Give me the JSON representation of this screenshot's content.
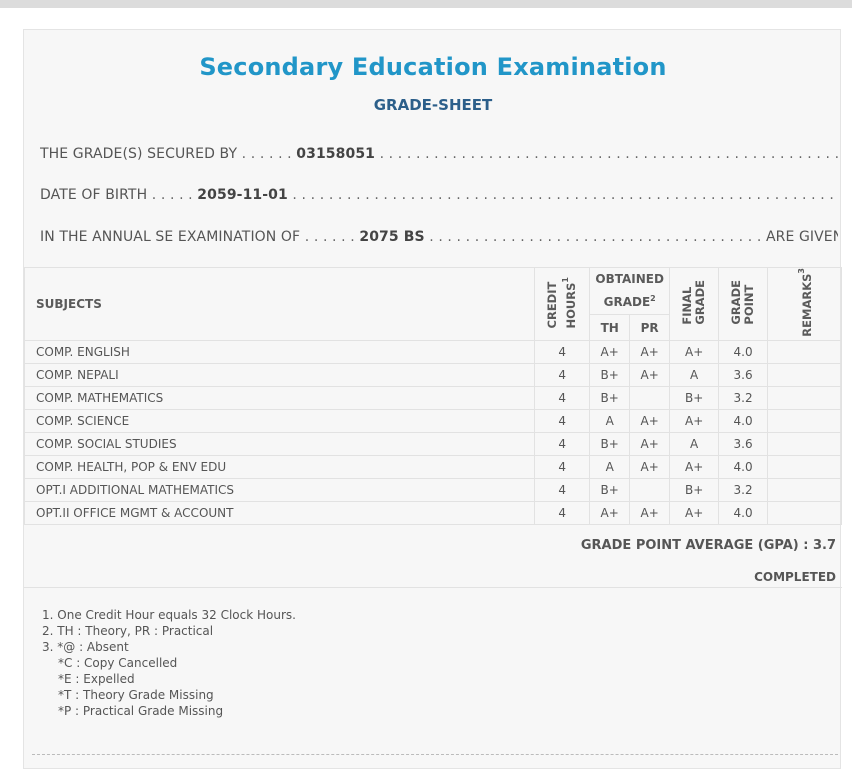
{
  "header": {
    "title": "Secondary Education Examination",
    "subtitle": "GRADE-SHEET"
  },
  "info": {
    "secured_label": "THE GRADE(S) SECURED BY",
    "secured_value": "03158051",
    "dob_label": "DATE OF BIRTH",
    "dob_value": "2059-11-01",
    "exam_label": "IN THE ANNUAL SE EXAMINATION OF",
    "exam_value": "2075 BS",
    "exam_suffix": "ARE GIVEN BELOW"
  },
  "table": {
    "headers": {
      "subjects": "SUBJECTS",
      "credit_hours_1": "CREDIT",
      "credit_hours_2": "HOURS",
      "credit_sup": "1",
      "obtained_grade_1": "OBTAINED",
      "obtained_grade_2": "GRADE",
      "obtained_sup": "2",
      "th": "TH",
      "pr": "PR",
      "final_grade_1": "FINAL",
      "final_grade_2": "GRADE",
      "grade_point_1": "GRADE",
      "grade_point_2": "POINT",
      "remarks": "REMARKS",
      "remarks_sup": "3"
    },
    "rows": [
      {
        "subject": "COMP. ENGLISH",
        "credit": "4",
        "th": "A+",
        "pr": "A+",
        "final": "A+",
        "gp": "4.0",
        "remarks": ""
      },
      {
        "subject": "COMP. NEPALI",
        "credit": "4",
        "th": "B+",
        "pr": "A+",
        "final": "A",
        "gp": "3.6",
        "remarks": ""
      },
      {
        "subject": "COMP. MATHEMATICS",
        "credit": "4",
        "th": "B+",
        "pr": "",
        "final": "B+",
        "gp": "3.2",
        "remarks": ""
      },
      {
        "subject": "COMP. SCIENCE",
        "credit": "4",
        "th": "A",
        "pr": "A+",
        "final": "A+",
        "gp": "4.0",
        "remarks": ""
      },
      {
        "subject": "COMP. SOCIAL STUDIES",
        "credit": "4",
        "th": "B+",
        "pr": "A+",
        "final": "A",
        "gp": "3.6",
        "remarks": ""
      },
      {
        "subject": "COMP. HEALTH, POP & ENV EDU",
        "credit": "4",
        "th": "A",
        "pr": "A+",
        "final": "A+",
        "gp": "4.0",
        "remarks": ""
      },
      {
        "subject": "OPT.I ADDITIONAL MATHEMATICS",
        "credit": "4",
        "th": "B+",
        "pr": "",
        "final": "B+",
        "gp": "3.2",
        "remarks": ""
      },
      {
        "subject": "OPT.II OFFICE MGMT & ACCOUNT",
        "credit": "4",
        "th": "A+",
        "pr": "A+",
        "final": "A+",
        "gp": "4.0",
        "remarks": ""
      }
    ]
  },
  "summary": {
    "gpa": "GRADE POINT AVERAGE (GPA) : 3.7",
    "status": "COMPLETED"
  },
  "notes": [
    "1. One Credit Hour equals 32 Clock Hours.",
    "2. TH : Theory, PR : Practical",
    "3. *@ : Absent",
    "*C : Copy Cancelled",
    "*E : Expelled",
    "*T : Theory Grade Missing",
    "*P : Practical Grade Missing"
  ],
  "colors": {
    "title": "#2196c8",
    "subtitle": "#2c5f8a",
    "sheet_bg": "#f7f7f7"
  }
}
